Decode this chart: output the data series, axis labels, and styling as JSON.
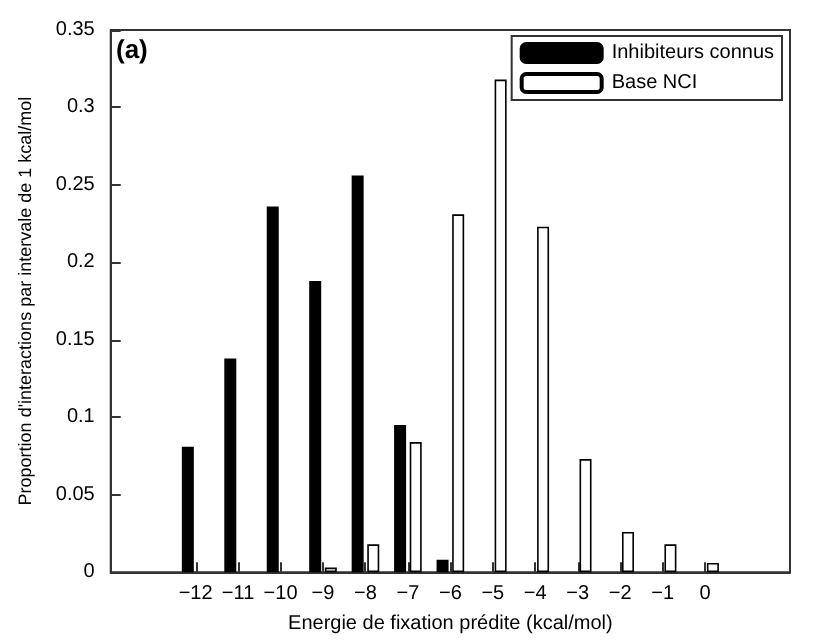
{
  "chart_data": {
    "type": "bar",
    "xlabel": "Energie de fixation prédite (kcal/mol)",
    "ylabel": "Proportion d'interactions par intervale de 1 kcal/mol",
    "annotations": [
      "(a)"
    ],
    "x": [
      -12,
      -11,
      -10,
      -9,
      -8,
      -7,
      -6,
      -5,
      -4,
      -3,
      -2,
      -1,
      0
    ],
    "series": [
      {
        "name": "Inhibiteurs connus",
        "color": "#000000",
        "values": [
          0.081,
          0.138,
          0.236,
          0.188,
          0.256,
          0.095,
          0.008,
          null,
          null,
          null,
          null,
          null,
          null
        ]
      },
      {
        "name": "Base NCI",
        "color": "#ffffff",
        "values": [
          null,
          null,
          null,
          0.003,
          0.018,
          0.084,
          0.231,
          0.318,
          0.223,
          0.073,
          0.026,
          0.018,
          0.006
        ]
      }
    ],
    "xlim": [
      -14,
      2
    ],
    "xticks": [
      {
        "value": -12,
        "label": "−12"
      },
      {
        "value": -11,
        "label": "−11"
      },
      {
        "value": -10,
        "label": "−10"
      },
      {
        "value": -9,
        "label": "−9"
      },
      {
        "value": -8,
        "label": "−8"
      },
      {
        "value": -7,
        "label": "−7"
      },
      {
        "value": -6,
        "label": "−6"
      },
      {
        "value": -5,
        "label": "−5"
      },
      {
        "value": -4,
        "label": "−4"
      },
      {
        "value": -3,
        "label": "−3"
      },
      {
        "value": -2,
        "label": "−2"
      },
      {
        "value": -1,
        "label": "−1"
      },
      0
    ],
    "ylim": [
      0,
      0.35
    ],
    "yticks": [
      0,
      0.05,
      0.1,
      0.15,
      0.2,
      0.25,
      0.3,
      0.35
    ],
    "grid": false,
    "legend": "top right"
  }
}
